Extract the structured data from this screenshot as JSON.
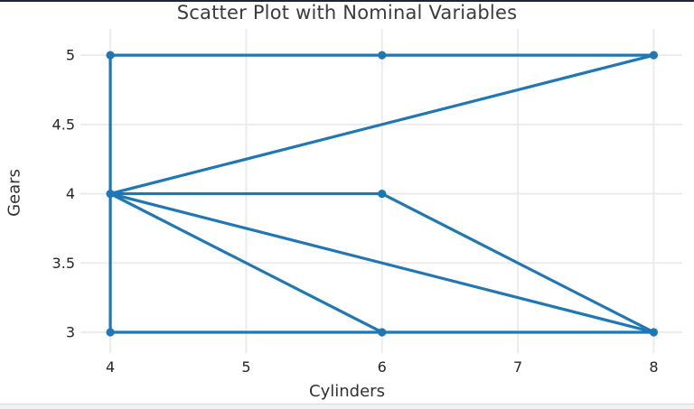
{
  "page": {
    "top_border_color": "#1c2534",
    "background_color": "#ffffff",
    "footer_strip_color": "#f1f2f4",
    "footer_border_color": "#d9dbdf"
  },
  "chart_data": {
    "type": "scatter",
    "title": "Scatter Plot with Nominal Variables",
    "xlabel": "Cylinders",
    "ylabel": "Gears",
    "x_ticks": [
      4,
      5,
      6,
      7,
      8
    ],
    "y_ticks": [
      3,
      3.5,
      4,
      4.5,
      5
    ],
    "xlim": [
      3.78,
      8.21
    ],
    "ylim": [
      2.85,
      5.19
    ],
    "grid": true,
    "legend": false,
    "line_color": "#1f77b4",
    "marker_color": "#1f77b4",
    "grid_color": "#eaeaea",
    "tick_color": "#262626",
    "title_color": "#3b3b3b",
    "points": [
      {
        "x": 4,
        "y": 3
      },
      {
        "x": 4,
        "y": 4
      },
      {
        "x": 4,
        "y": 5
      },
      {
        "x": 6,
        "y": 3
      },
      {
        "x": 6,
        "y": 4
      },
      {
        "x": 6,
        "y": 5
      },
      {
        "x": 8,
        "y": 3
      },
      {
        "x": 8,
        "y": 5
      }
    ],
    "segments": [
      {
        "x1": 4,
        "y1": 5,
        "x2": 8,
        "y2": 5
      },
      {
        "x1": 4,
        "y1": 4,
        "x2": 8,
        "y2": 5
      },
      {
        "x1": 4,
        "y1": 3,
        "x2": 4,
        "y2": 5
      },
      {
        "x1": 4,
        "y1": 4,
        "x2": 6,
        "y2": 4
      },
      {
        "x1": 6,
        "y1": 4,
        "x2": 8,
        "y2": 3
      },
      {
        "x1": 4,
        "y1": 4,
        "x2": 6,
        "y2": 3
      },
      {
        "x1": 4,
        "y1": 4,
        "x2": 8,
        "y2": 3
      },
      {
        "x1": 4,
        "y1": 3,
        "x2": 8,
        "y2": 3
      }
    ]
  }
}
